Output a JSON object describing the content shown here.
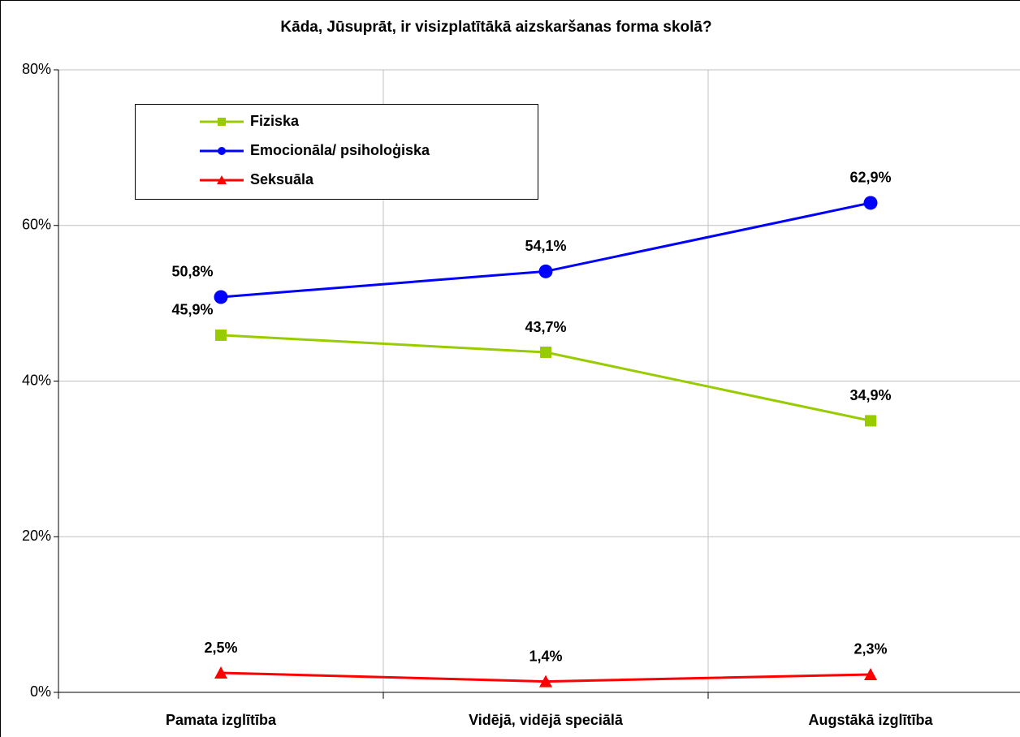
{
  "chart_data": {
    "type": "line",
    "title": "Kāda, Jūsuprāt, ir visizplatītākā aizskaršanas forma skolā?",
    "categories": [
      "Pamata izglītība",
      "Vidējā, vidējā speciālā",
      "Augstākā izglītība"
    ],
    "series": [
      {
        "name": "Fiziska",
        "color": "#99cc00",
        "marker": "square",
        "values": [
          45.9,
          43.7,
          34.9
        ],
        "value_labels": [
          "45,9%",
          "43,7%",
          "34,9%"
        ]
      },
      {
        "name": "Emocionāla/ psiholoģiska",
        "color": "#0000ff",
        "marker": "circle",
        "values": [
          50.8,
          54.1,
          62.9
        ],
        "value_labels": [
          "50,8%",
          "54,1%",
          "62,9%"
        ]
      },
      {
        "name": "Seksuāla",
        "color": "#ff0000",
        "marker": "triangle",
        "values": [
          2.5,
          1.4,
          2.3
        ],
        "value_labels": [
          "2,5%",
          "1,4%",
          "2,3%"
        ]
      }
    ],
    "ylim": [
      0,
      80
    ],
    "yticks": [
      {
        "value": 0,
        "label": "0%"
      },
      {
        "value": 20,
        "label": "20%"
      },
      {
        "value": 40,
        "label": "40%"
      },
      {
        "value": 60,
        "label": "60%"
      },
      {
        "value": 80,
        "label": "80%"
      }
    ],
    "grid": true,
    "legend": "upper left"
  }
}
